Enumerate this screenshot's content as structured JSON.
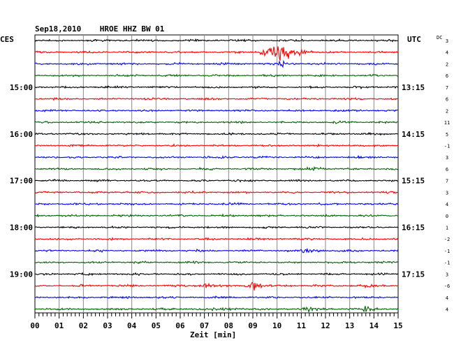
{
  "chart_data": {
    "type": "line",
    "title": "Sep18,2010    HROE HHZ BW 01",
    "left_label": "CES",
    "right_label": "UTC",
    "dc_label": "DC",
    "xlabel": "Zeit [min]",
    "xlim": [
      0,
      15
    ],
    "x_ticks": [
      "00",
      "01",
      "02",
      "03",
      "04",
      "05",
      "06",
      "07",
      "08",
      "09",
      "10",
      "11",
      "12",
      "13",
      "14",
      "15"
    ],
    "left_time_labels": [
      "15:00",
      "16:00",
      "17:00",
      "18:00",
      "19:00"
    ],
    "right_time_labels": [
      "13:15",
      "14:15",
      "15:15",
      "16:15",
      "17:15"
    ],
    "labeled_rows": [
      4,
      8,
      12,
      16,
      20
    ],
    "traces": 24,
    "trace_colors": [
      "#000000",
      "#ff0000",
      "#0000ff",
      "#006400"
    ],
    "dc_offsets": [
      "3",
      "4",
      "2",
      "6",
      "7",
      "6",
      "2",
      "11",
      "5",
      "-1",
      "3",
      "6",
      "7",
      "3",
      "4",
      "0",
      "1",
      "-2",
      "-1",
      "-1",
      "3",
      "-6",
      "4",
      "4"
    ],
    "events": [
      {
        "row": 1,
        "minute": 10.1,
        "amplitude": 24,
        "duration_min": 1.4
      },
      {
        "row": 1,
        "minute": 9.4,
        "amplitude": 10,
        "duration_min": 0.6
      },
      {
        "row": 2,
        "minute": 10.2,
        "amplitude": 6,
        "duration_min": 0.6
      },
      {
        "row": 21,
        "minute": 9.0,
        "amplitude": 10,
        "duration_min": 0.9
      },
      {
        "row": 21,
        "minute": 7.0,
        "amplitude": 7,
        "duration_min": 0.9
      },
      {
        "row": 21,
        "minute": 13.4,
        "amplitude": 4,
        "duration_min": 0.8
      },
      {
        "row": 23,
        "minute": 11.3,
        "amplitude": 4,
        "duration_min": 1.5
      },
      {
        "row": 23,
        "minute": 13.6,
        "amplitude": 4,
        "duration_min": 1.2
      },
      {
        "row": 23,
        "minute": 7.8,
        "amplitude": 3,
        "duration_min": 1.2
      },
      {
        "row": 18,
        "minute": 11.2,
        "amplitude": 4,
        "duration_min": 1.0
      },
      {
        "row": 11,
        "minute": 11.5,
        "amplitude": 3,
        "duration_min": 1.0
      }
    ]
  }
}
